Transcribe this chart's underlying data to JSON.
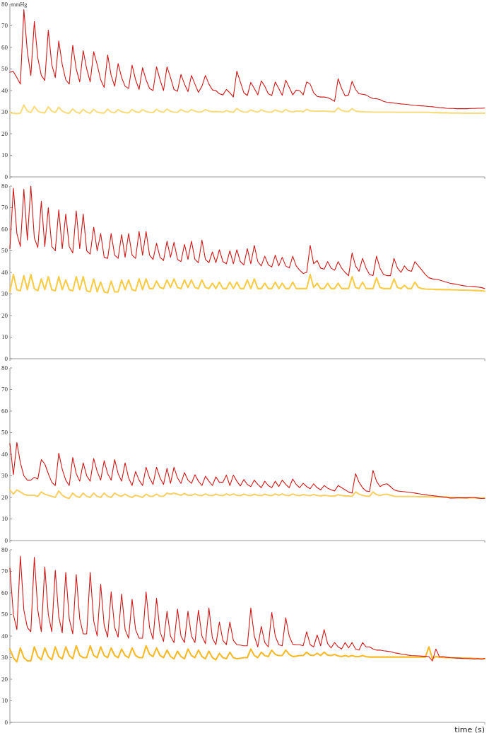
{
  "chart_data": [
    {
      "type": "line",
      "ylabel": "mmHg",
      "ylim": [
        0,
        80
      ],
      "yticks": [
        0,
        10,
        20,
        30,
        40,
        50,
        60,
        70,
        80
      ],
      "tick_labels": "y",
      "line_style": "solid",
      "categories": [
        null,
        null,
        null,
        null,
        null,
        null,
        null,
        null,
        null,
        null,
        null,
        null,
        null,
        null,
        null,
        null,
        null,
        null,
        null,
        null,
        null,
        null,
        null,
        null,
        null,
        null,
        null,
        null,
        null,
        null,
        null,
        null,
        null,
        null,
        null,
        null,
        null,
        null,
        null,
        null,
        null,
        null,
        null,
        null,
        null,
        null,
        null,
        null,
        null,
        null,
        null,
        null,
        null,
        null,
        null,
        null,
        null,
        null,
        null,
        null,
        null,
        null,
        null,
        null,
        null,
        null,
        null,
        null,
        null,
        null,
        null,
        null,
        null,
        null,
        null,
        null,
        null,
        null,
        null,
        null,
        null,
        null,
        null,
        null,
        null,
        null,
        null,
        null,
        null,
        null,
        null,
        null,
        null,
        null,
        null,
        null,
        null,
        null,
        null,
        null,
        null,
        null,
        null,
        null,
        null,
        null,
        null,
        null,
        null,
        null,
        null,
        null,
        null,
        null,
        null,
        null,
        null,
        null,
        null,
        null,
        null,
        null,
        null,
        null,
        null,
        null,
        null,
        null,
        null,
        null,
        null,
        null,
        null,
        null,
        null,
        null,
        null
      ],
      "series": [
        {
          "color": "#f7dc80",
          "values": [
            29.8,
            29.5,
            29.3,
            29.5,
            33.3,
            30.5,
            29.8,
            32.7,
            30.5,
            29.8,
            29.7,
            32.5,
            30.5,
            29.8,
            32.3,
            30.5,
            29.7,
            29.5,
            31.5,
            30,
            29.5,
            31.3,
            30,
            29.5,
            31.3,
            30,
            29.7,
            29.6,
            31.4,
            30,
            29.7,
            31.2,
            30.2,
            29.8,
            29.7,
            31.2,
            30.2,
            29.8,
            31.2,
            30.3,
            29.9,
            29.8,
            31.3,
            30.3,
            29.9,
            31.4,
            30.4,
            30,
            29.9,
            31.2,
            30.4,
            30,
            31.2,
            30.5,
            30,
            30.2,
            31.2,
            30.5,
            30.2,
            30.3,
            30.2,
            30,
            30.7,
            30.2,
            29.9,
            31.7,
            30.6,
            30.1,
            30,
            31,
            30.4,
            30,
            31.1,
            30.4,
            30,
            30,
            31,
            30.4,
            30,
            31.2,
            30.4,
            30.1,
            30.5,
            30.5,
            30.2,
            31.3,
            30.6,
            30.5,
            30.5,
            30.5,
            30.5,
            30.4,
            30.3,
            30.2,
            32,
            30.8,
            30.4,
            30.3,
            31.6,
            30.5,
            30.3,
            30.2,
            30.1,
            30.1,
            30,
            30,
            30,
            30,
            30,
            30,
            30,
            29.9,
            29.9,
            29.9,
            29.9,
            29.9,
            29.9,
            29.9,
            29.9,
            29.9,
            29.9,
            29.8,
            29.8,
            29.7,
            29.7,
            29.7,
            29.6,
            29.6,
            29.6,
            29.6,
            29.5,
            29.5,
            29.5,
            29.5,
            29.5,
            29.5,
            29.5
          ]
        },
        {
          "color": "#cc1a1a",
          "values": [
            48.5,
            48.8,
            46,
            43,
            77.5,
            58,
            47,
            72,
            55,
            47,
            44.7,
            68,
            52,
            46,
            63,
            52,
            45,
            43,
            61,
            50,
            44,
            58.5,
            50,
            44,
            58,
            52,
            45,
            41.5,
            56.5,
            47,
            42,
            52.5,
            46,
            42,
            41,
            51.8,
            45,
            40.5,
            50.6,
            45,
            41,
            40,
            51,
            45,
            40,
            51,
            46,
            40.5,
            39.7,
            47.5,
            43,
            39.5,
            47,
            43,
            39.2,
            42,
            47,
            43,
            40.3,
            40,
            38.5,
            38,
            40.5,
            39,
            37,
            49,
            44,
            39,
            37.7,
            43.8,
            41,
            38,
            44.5,
            42,
            38.5,
            37.7,
            44,
            41,
            37.8,
            44.8,
            41.5,
            38,
            40.2,
            40,
            38,
            44,
            43,
            39,
            37.3,
            37,
            37,
            36.7,
            36,
            35,
            45.5,
            41,
            37.5,
            38,
            44.3,
            40.5,
            38.5,
            38.3,
            38,
            37,
            36.3,
            36.2,
            35.8,
            35,
            34.6,
            34.4,
            34.2,
            34,
            33.8,
            33.7,
            33.5,
            33.3,
            33.1,
            33,
            32.9,
            32.8,
            32.6,
            32.5,
            32.3,
            32.1,
            32,
            31.8,
            31.7,
            31.7,
            31.6,
            31.6,
            31.6,
            31.6,
            31.7,
            31.7,
            31.8,
            31.8,
            31.9
          ]
        }
      ]
    },
    {
      "type": "line",
      "ylim": [
        0,
        80
      ],
      "yticks": [
        0,
        10,
        20,
        30,
        40,
        50,
        60,
        70,
        80
      ],
      "tick_labels": "y",
      "line_style": "solid",
      "categories": [
        null,
        null,
        null,
        null,
        null,
        null,
        null,
        null,
        null,
        null,
        null,
        null,
        null,
        null,
        null,
        null,
        null,
        null,
        null,
        null,
        null,
        null,
        null,
        null,
        null,
        null,
        null,
        null,
        null,
        null,
        null,
        null,
        null,
        null,
        null,
        null,
        null,
        null,
        null,
        null,
        null,
        null,
        null,
        null,
        null,
        null,
        null,
        null,
        null,
        null,
        null,
        null,
        null,
        null,
        null,
        null,
        null,
        null,
        null,
        null,
        null,
        null,
        null,
        null,
        null,
        null,
        null,
        null,
        null,
        null,
        null,
        null,
        null,
        null,
        null,
        null,
        null,
        null,
        null,
        null,
        null,
        null,
        null,
        null,
        null,
        null,
        null,
        null,
        null,
        null,
        null,
        null,
        null,
        null,
        null,
        null,
        null,
        null,
        null,
        null,
        null,
        null,
        null,
        null,
        null,
        null,
        null,
        null,
        null,
        null,
        null,
        null,
        null,
        null,
        null,
        null,
        null,
        null,
        null,
        null,
        null,
        null,
        null,
        null,
        null,
        null,
        null,
        null,
        null,
        null,
        null,
        null,
        null,
        null,
        null,
        null,
        null
      ],
      "series": [
        {
          "color": "#f8cc48",
          "values": [
            31,
            39,
            32,
            31.5,
            38.5,
            32,
            39,
            32.5,
            31.5,
            37,
            32,
            38,
            32,
            31.5,
            38,
            32,
            36.5,
            32,
            31.5,
            38,
            32,
            38,
            31.5,
            31,
            37,
            31,
            35.5,
            31,
            30.5,
            36,
            31,
            31,
            36.5,
            32,
            36.5,
            32,
            31.5,
            37,
            32,
            37,
            32.5,
            32.5,
            36,
            33,
            32.5,
            36.5,
            33,
            37,
            33,
            32.5,
            36.5,
            33,
            36.5,
            33,
            32.5,
            36.5,
            33,
            32.5,
            35,
            32.5,
            35.5,
            32.5,
            32.5,
            35.5,
            32.5,
            35.5,
            32.5,
            32.5,
            36.5,
            32.5,
            37,
            32.5,
            32.5,
            35,
            32.5,
            32.5,
            35.5,
            32.5,
            35,
            32.5,
            32.5,
            35.5,
            32.5,
            32.5,
            32.5,
            32.5,
            39,
            33,
            35,
            32.5,
            32.5,
            35,
            32.5,
            32.5,
            35,
            32.5,
            32.5,
            32.5,
            38,
            33,
            32.5,
            35.5,
            32.5,
            32.5,
            32.5,
            37.5,
            33,
            32.5,
            32.5,
            32.5,
            37,
            33,
            32.5,
            34,
            32.5,
            32.5,
            35.5,
            33,
            32.5,
            32.3,
            32.2,
            32.2,
            32.1,
            32.1,
            32,
            32,
            32,
            31.9,
            31.9,
            31.8,
            31.8,
            31.7,
            31.7,
            31.6,
            31.6,
            31.5,
            31.3
          ]
        },
        {
          "color": "#cc1a1a",
          "values": [
            51,
            79,
            58,
            52,
            78.5,
            55,
            80,
            56,
            51.5,
            73,
            52,
            70,
            52,
            50,
            69,
            51,
            67,
            52,
            49,
            68.5,
            51,
            67,
            50,
            48.5,
            61,
            50,
            58,
            47,
            46.5,
            58,
            48,
            46.5,
            57.5,
            47,
            58,
            48,
            46.5,
            59,
            48,
            59,
            48,
            46,
            53.5,
            47,
            45.5,
            54.5,
            47,
            54,
            46,
            45,
            53,
            46,
            54.5,
            46,
            44.5,
            55,
            46,
            44.5,
            49.5,
            44.5,
            50.5,
            45,
            44,
            50,
            44,
            50.5,
            45,
            43.5,
            51,
            44,
            52.5,
            45,
            43,
            47.5,
            43.5,
            42.5,
            48,
            43,
            47,
            43,
            42,
            47.5,
            43,
            41,
            39.5,
            40,
            52.5,
            44,
            45.5,
            42,
            41.5,
            45,
            42,
            41,
            45,
            42,
            40,
            38.5,
            49,
            43,
            40.5,
            46.5,
            42,
            39,
            38.5,
            47.5,
            42,
            39,
            38.5,
            38.5,
            46.5,
            42,
            40,
            43,
            41,
            40.5,
            45,
            43,
            41,
            39,
            37.5,
            37,
            36.8,
            36.5,
            36,
            35.5,
            35,
            34.7,
            34.4,
            34.1,
            33.8,
            33.6,
            33.5,
            33.4,
            33.2,
            33,
            32.5
          ]
        }
      ]
    },
    {
      "type": "line",
      "ylim": [
        0,
        80
      ],
      "yticks": [
        0,
        10,
        20,
        30,
        40,
        50,
        60,
        70,
        80
      ],
      "tick_labels": "y",
      "line_style": "solid",
      "categories": [
        null,
        null,
        null,
        null,
        null,
        null,
        null,
        null,
        null,
        null,
        null,
        null,
        null,
        null,
        null,
        null,
        null,
        null,
        null,
        null,
        null,
        null,
        null,
        null,
        null,
        null,
        null,
        null,
        null,
        null,
        null,
        null,
        null,
        null,
        null,
        null,
        null,
        null,
        null,
        null,
        null,
        null,
        null,
        null,
        null,
        null,
        null,
        null,
        null,
        null,
        null,
        null,
        null,
        null,
        null,
        null,
        null,
        null,
        null,
        null,
        null,
        null,
        null,
        null,
        null,
        null,
        null,
        null,
        null,
        null,
        null,
        null,
        null,
        null,
        null,
        null,
        null,
        null,
        null,
        null,
        null,
        null,
        null,
        null,
        null,
        null,
        null,
        null,
        null,
        null,
        null,
        null,
        null,
        null,
        null,
        null,
        null,
        null,
        null,
        null,
        null,
        null,
        null,
        null,
        null,
        null,
        null,
        null,
        null,
        null,
        null,
        null,
        null,
        null,
        null,
        null,
        null,
        null,
        null,
        null,
        null,
        null,
        null,
        null,
        null,
        null,
        null,
        null,
        null,
        null,
        null,
        null,
        null,
        null,
        null,
        null,
        null
      ],
      "series": [
        {
          "color": "#f8d068",
          "values": [
            23.5,
            21.5,
            23.5,
            22.5,
            21.5,
            21,
            21,
            21,
            20.5,
            22.5,
            21.5,
            21,
            20.5,
            20,
            23,
            21,
            20,
            19.5,
            22,
            20.5,
            20,
            22,
            20.5,
            20,
            22,
            20.5,
            20,
            22,
            20.5,
            20,
            22,
            21,
            20.5,
            21.5,
            20.5,
            20,
            21,
            20.5,
            20,
            21.5,
            20.5,
            20.5,
            21.5,
            20.5,
            20.5,
            22,
            21.5,
            22,
            21.5,
            21,
            21.8,
            21,
            21,
            21.6,
            21,
            20.8,
            21.6,
            21,
            20.8,
            21.5,
            21,
            20.8,
            21.6,
            21,
            21.6,
            21,
            20.8,
            21.5,
            21,
            20.8,
            21.5,
            21,
            20.8,
            21.5,
            21,
            20.8,
            21.6,
            21,
            21.6,
            21,
            20.8,
            21.6,
            21,
            20.8,
            21.3,
            21,
            20.8,
            21.3,
            20.9,
            20.7,
            21,
            20.8,
            20.6,
            20.6,
            21.2,
            20.9,
            20.7,
            20.6,
            20.5,
            22.5,
            21.5,
            21,
            20.6,
            20.5,
            22.5,
            21.3,
            20.9,
            21.3,
            21.5,
            21,
            20.6,
            20.4,
            20.4,
            20.4,
            20.4,
            20.4,
            20.4,
            20.3,
            20.3,
            20.3,
            20.3,
            20.2,
            20.2,
            20.2,
            20.2,
            20.2,
            20,
            20,
            19.9,
            19.9,
            19.8,
            19.8,
            19.8,
            19.8,
            19.7,
            19.7,
            19.7
          ]
        },
        {
          "color": "#cc1a1a",
          "values": [
            45,
            30.5,
            45.5,
            36,
            30,
            28,
            28,
            29.3,
            28.5,
            37.5,
            35.5,
            31,
            27,
            25.5,
            40.5,
            33,
            28,
            25.5,
            38.5,
            31,
            27.5,
            36,
            30,
            27.5,
            38,
            32,
            28,
            37,
            31,
            28,
            37.5,
            31,
            27.5,
            36,
            29,
            25.5,
            32,
            28,
            25.5,
            34,
            29,
            26,
            34,
            29,
            26,
            33.5,
            26.5,
            34,
            29,
            26.5,
            31.5,
            28,
            26.5,
            30.5,
            27.5,
            25.5,
            29.8,
            27.5,
            25.5,
            29.5,
            27,
            27,
            30.3,
            25.5,
            30.3,
            27.5,
            25.3,
            28.3,
            26,
            25,
            28,
            26,
            24.5,
            27.5,
            25.5,
            24.5,
            27.5,
            25,
            28,
            26,
            24.5,
            28.5,
            26,
            24.5,
            26.5,
            25,
            24,
            26.3,
            24.5,
            23.5,
            25.5,
            24.3,
            23.5,
            23,
            25.5,
            24.5,
            23.5,
            22.5,
            22,
            31,
            27,
            24.5,
            23,
            22.7,
            32.5,
            27.5,
            25,
            26,
            26.3,
            25,
            23.5,
            23,
            22.8,
            22.6,
            22.4,
            22.2,
            22,
            21.7,
            21.5,
            21.2,
            21,
            20.8,
            20.6,
            20.4,
            20.2,
            20,
            19.7,
            19.7,
            19.8,
            19.8,
            19.8,
            19.8,
            19.9,
            19.9,
            19.7,
            19.5,
            19.6
          ]
        }
      ]
    },
    {
      "type": "line",
      "xlabel": "time (s)",
      "ylim": [
        0,
        80
      ],
      "yticks": [
        0,
        10,
        20,
        30,
        40,
        50,
        60,
        70,
        80
      ],
      "tick_labels": "y",
      "line_style": "solid",
      "categories": [
        null,
        null,
        null,
        null,
        null,
        null,
        null,
        null,
        null,
        null,
        null,
        null,
        null,
        null,
        null,
        null,
        null,
        null,
        null,
        null,
        null,
        null,
        null,
        null,
        null,
        null,
        null,
        null,
        null,
        null,
        null,
        null,
        null,
        null,
        null,
        null,
        null,
        null,
        null,
        null,
        null,
        null,
        null,
        null,
        null,
        null,
        null,
        null,
        null,
        null,
        null,
        null,
        null,
        null,
        null,
        null,
        null,
        null,
        null,
        null,
        null,
        null,
        null,
        null,
        null,
        null,
        null,
        null,
        null,
        null,
        null,
        null,
        null,
        null,
        null,
        null,
        null,
        null,
        null,
        null,
        null,
        null,
        null,
        null,
        null,
        null,
        null,
        null,
        null,
        null,
        null,
        null,
        null,
        null,
        null,
        null,
        null,
        null,
        null,
        null,
        null,
        null,
        null,
        null,
        null,
        null,
        null,
        null,
        null,
        null,
        null,
        null,
        null,
        null,
        null,
        null,
        null,
        null,
        null,
        null,
        null,
        null,
        null,
        null,
        null,
        null,
        null,
        null,
        null,
        null,
        null,
        null,
        null,
        null,
        null,
        null,
        null
      ],
      "series": [
        {
          "color": "#f6b92a",
          "values": [
            34,
            30,
            28,
            34.5,
            30,
            28.5,
            28.5,
            35,
            30.5,
            29,
            34.5,
            30.5,
            29,
            35,
            30.5,
            29.5,
            35,
            31,
            29.5,
            35.5,
            31,
            30,
            30,
            35.5,
            31,
            30,
            35,
            31,
            30,
            34.5,
            31,
            30,
            34,
            31,
            30,
            34.5,
            31,
            30,
            30,
            35.5,
            31.5,
            30.5,
            34.5,
            31,
            30,
            33.5,
            30.5,
            29.5,
            33,
            30.5,
            29.5,
            34,
            31,
            30,
            33.5,
            30.5,
            29.5,
            33,
            30,
            29,
            32,
            30,
            29.5,
            32.5,
            30,
            29.5,
            29.7,
            30,
            30,
            34,
            31,
            30,
            32.5,
            31,
            30.5,
            33.5,
            31.5,
            31,
            31,
            33.5,
            31.5,
            30.5,
            30.7,
            31,
            31,
            32.5,
            31.2,
            31,
            32,
            31,
            32.5,
            31.2,
            31,
            31.5,
            30.8,
            30.5,
            31,
            30.5,
            31,
            30.5,
            30.5,
            31,
            30.5,
            30.3,
            30.3,
            30.3,
            30.3,
            30.3,
            30.3,
            30.3,
            30.3,
            30.3,
            30.3,
            30.3,
            30.3,
            30.3,
            30.3,
            30.3,
            30.3,
            30.3,
            35,
            29.5,
            30.5,
            30.2,
            30.1,
            30,
            30,
            29.9,
            29.9,
            29.8,
            29.8,
            29.7,
            29.7,
            29.6,
            29.6,
            29.5,
            29.5
          ]
        },
        {
          "color": "#cc1a1a",
          "values": [
            71.5,
            50,
            43,
            77,
            52,
            44,
            42,
            76.5,
            52,
            42,
            72,
            50,
            42,
            70.5,
            49,
            41.5,
            69.5,
            48,
            41,
            68.5,
            48,
            41,
            41,
            69.5,
            47,
            40,
            64,
            45,
            39.5,
            60.5,
            44,
            39.5,
            59.5,
            43,
            39,
            57,
            43,
            39,
            39,
            60.5,
            44,
            38.5,
            57.5,
            42,
            37.5,
            51.5,
            40,
            37,
            52.5,
            40,
            37,
            51.5,
            40,
            37,
            52,
            40,
            36.5,
            53,
            39,
            36,
            46.5,
            38,
            36,
            46.5,
            38,
            36,
            35.8,
            35.5,
            35.5,
            53,
            40,
            35,
            44.5,
            37,
            35,
            51,
            40,
            36,
            35.5,
            48.5,
            40,
            36.2,
            36,
            36,
            35.5,
            42,
            36,
            35,
            40.5,
            35.5,
            43,
            36.5,
            34.5,
            37,
            35,
            34,
            37,
            34.5,
            37,
            34,
            33.5,
            37,
            35,
            35,
            34,
            33.5,
            33.5,
            33.2,
            33,
            32.8,
            32.3,
            32,
            31.7,
            31.5,
            31.2,
            31,
            30.9,
            30.8,
            30.7,
            30.6,
            30.5,
            28.5,
            34,
            30.4,
            30.5,
            30.2,
            30,
            29.9,
            29.8,
            29.7,
            29.6,
            29.6,
            29.5,
            29.4,
            29.5,
            29.3,
            29.6
          ]
        }
      ]
    }
  ]
}
